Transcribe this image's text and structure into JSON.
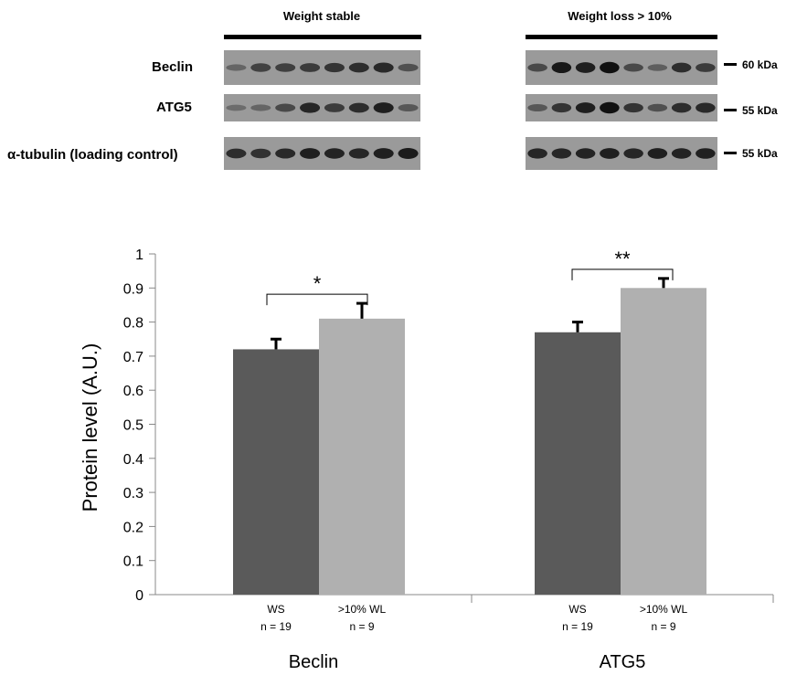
{
  "blot": {
    "groups": [
      {
        "label": "Weight stable"
      },
      {
        "label": "Weight loss > 10%"
      }
    ],
    "rows": [
      {
        "label": "Beclin",
        "size": "60 kDa"
      },
      {
        "label": "ATG5",
        "size": "55 kDa"
      },
      {
        "label": "α-tubulin (loading control)",
        "size": "55 kDa"
      }
    ],
    "band_intensity": {
      "left": [
        [
          0.35,
          0.6,
          0.62,
          0.65,
          0.7,
          0.75,
          0.78,
          0.5
        ],
        [
          0.3,
          0.35,
          0.55,
          0.8,
          0.65,
          0.75,
          0.85,
          0.45
        ],
        [
          0.75,
          0.72,
          0.78,
          0.85,
          0.82,
          0.8,
          0.85,
          0.88
        ]
      ],
      "right": [
        [
          0.55,
          0.9,
          0.85,
          0.95,
          0.55,
          0.4,
          0.75,
          0.65
        ],
        [
          0.45,
          0.7,
          0.85,
          0.95,
          0.7,
          0.5,
          0.75,
          0.78
        ],
        [
          0.8,
          0.8,
          0.82,
          0.85,
          0.8,
          0.85,
          0.82,
          0.84
        ]
      ]
    }
  },
  "chart_data": {
    "type": "bar",
    "ylabel": "Protein level (A.U.)",
    "ylim": [
      0,
      1
    ],
    "yticks": [
      "0",
      "0.1",
      "0.2",
      "0.3",
      "0.4",
      "0.5",
      "0.6",
      "0.7",
      "0.8",
      "0.9",
      "1"
    ],
    "grid": false,
    "groups": [
      {
        "label": "Beclin",
        "significance": "*",
        "bars": [
          {
            "category": "WS",
            "n": "n = 19",
            "value": 0.72,
            "error": 0.03,
            "color": "#5a5a5a"
          },
          {
            "category": ">10% WL",
            "n": "n = 9",
            "value": 0.81,
            "error": 0.045,
            "color": "#b0b0b0"
          }
        ]
      },
      {
        "label": "ATG5",
        "significance": "**",
        "bars": [
          {
            "category": "WS",
            "n": "n = 19",
            "value": 0.77,
            "error": 0.03,
            "color": "#5a5a5a"
          },
          {
            "category": ">10% WL",
            "n": "n = 9",
            "value": 0.9,
            "error": 0.028,
            "color": "#b0b0b0"
          }
        ]
      }
    ]
  }
}
